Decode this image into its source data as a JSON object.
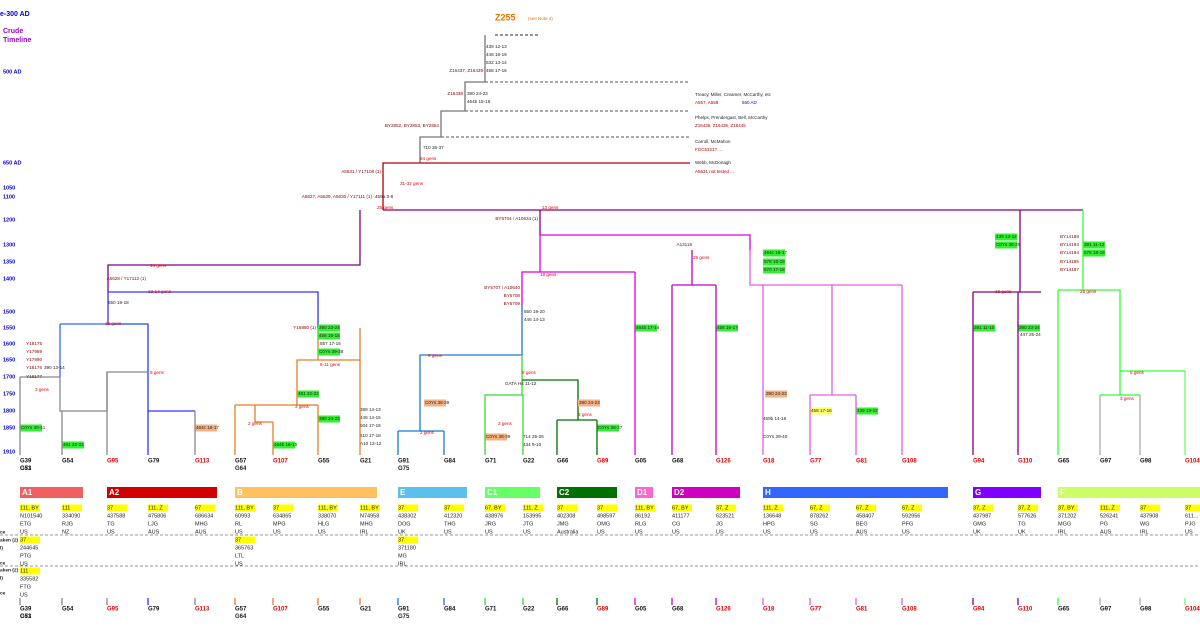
{
  "header": {
    "era": "e-300 AD",
    "crude": "Crude",
    "timeline": "Timeline",
    "root": "Z255",
    "root_note": "(see Note 4)"
  },
  "timeline": [
    "500 AD",
    "650 AD",
    "1050",
    "1100",
    "1200",
    "1300",
    "1350",
    "1400",
    "1500",
    "1550",
    "1600",
    "1650",
    "1700",
    "1750",
    "1800",
    "1850",
    "1910"
  ],
  "descendants": [
    {
      "text": "Treacy, Miller, Creamer, McCarthy, etc",
      "color": "#222"
    },
    {
      "text": "A557, A558",
      "color": "#b00000"
    },
    {
      "text": "550 AD",
      "color": "#0000d0"
    },
    {
      "text": "Phelps, Prendergast, Bell, McCarthy",
      "color": "#222"
    },
    {
      "text": "Z16435, Z16436, Z16445",
      "color": "#b00000"
    },
    {
      "text": "Carroll, McMahon",
      "color": "#222"
    },
    {
      "text": "FGC5321? ...",
      "color": "#b00000"
    },
    {
      "text": "Webb, McDonagh",
      "color": "#222"
    },
    {
      "text": "A5631 not tested ...",
      "color": "#b00000"
    }
  ],
  "notes": [
    {
      "text": "439 12-13"
    },
    {
      "text": "448 18-19"
    },
    {
      "text": "532 13-14"
    },
    {
      "text": "458 17-16"
    },
    {
      "text": "Z16437, Z16439",
      "color": "#8b0000"
    },
    {
      "text": "Z16438",
      "color": "#8b0000"
    },
    {
      "text": "390 24-23"
    },
    {
      "text": "464b 15-16"
    },
    {
      "text": "BY2852, BY2853, BY2854",
      "color": "#8b0000"
    },
    {
      "text": "710 36-37"
    },
    {
      "text": "A5631 / Y17108 (1)",
      "color": "#8b0000"
    },
    {
      "text": "A5627, A5629, A5630 / Y17111 (1)",
      "color": "#8b0000"
    },
    {
      "text": "459a 3-8"
    },
    {
      "text": "BY5704 / A10634 (1)",
      "color": "#8b0000"
    },
    {
      "text": "A5628 / Y17112 (1)",
      "color": "#8b0000"
    },
    {
      "text": "650 19-18"
    },
    {
      "text": "Y16880 (1)",
      "color": "#8b0000"
    },
    {
      "text": "557 17-16"
    },
    {
      "text": "BY5707 / A10640",
      "color": "#8b0000"
    },
    {
      "text": "BY5708",
      "color": "#8b0000"
    },
    {
      "text": "BY5709",
      "color": "#8b0000"
    },
    {
      "text": "650 19-20"
    },
    {
      "text": "446 14-13"
    },
    {
      "text": "A13119",
      "color": "#8b0000"
    },
    {
      "text": "389 14-13"
    },
    {
      "text": "446 14-15"
    },
    {
      "text": "504 17-16"
    },
    {
      "text": "510 17-18"
    },
    {
      "text": "A10 13-12"
    },
    {
      "text": "Y18175",
      "color": "#8b0000"
    },
    {
      "text": "Y17989",
      "color": "#8b0000"
    },
    {
      "text": "Y17990",
      "color": "#8b0000"
    },
    {
      "text": "Y18176",
      "color": "#8b0000"
    },
    {
      "text": "Y18177",
      "color": "#8b0000"
    },
    {
      "text": "390 13-14"
    },
    {
      "text": "447 25-24"
    },
    {
      "text": "BY14189",
      "color": "#8b0000"
    },
    {
      "text": "BY14193",
      "color": "#8b0000"
    },
    {
      "text": "BY14194",
      "color": "#8b0000"
    },
    {
      "text": "BY14195",
      "color": "#8b0000"
    },
    {
      "text": "BY14197",
      "color": "#8b0000"
    },
    {
      "text": "459b 14-16"
    },
    {
      "text": "C0Ys 39-40"
    },
    {
      "text": "GATA H4 11-12"
    },
    {
      "text": "714 25-26"
    },
    {
      "text": "434 9-10"
    }
  ],
  "highlights": [
    {
      "text": "390 23-24",
      "bg": "#33ee33"
    },
    {
      "text": "456 16-15",
      "bg": "#33ee33"
    },
    {
      "text": "C0Ys 39-38",
      "bg": "#33ee33"
    },
    {
      "text": "481 22-23",
      "bg": "#33ee33"
    },
    {
      "text": "390 24-23",
      "bg": "#33ee33"
    },
    {
      "text": "464c 16-17",
      "bg": "#33ee33"
    },
    {
      "text": "576 18-19",
      "bg": "#33ee33"
    },
    {
      "text": "570 17-18",
      "bg": "#33ee33"
    },
    {
      "text": "439 13-12",
      "bg": "#33ee33"
    },
    {
      "text": "C0Ys 36-38",
      "bg": "#33ee33"
    },
    {
      "text": "391 11-10",
      "bg": "#33ee33"
    },
    {
      "text": "390 23-24",
      "bg": "#33ee33"
    },
    {
      "text": "391 11-12",
      "bg": "#33ee33"
    },
    {
      "text": "576 18-19",
      "bg": "#33ee33"
    },
    {
      "text": "390 24-23",
      "bg": "#f4b183"
    },
    {
      "text": "C0Ys 38-39",
      "bg": "#f4b183"
    },
    {
      "text": "390 24-23",
      "bg": "#f4b183"
    },
    {
      "text": "C0Ys 40-41",
      "bg": "#33ee33"
    },
    {
      "text": "481 22-23",
      "bg": "#33ee33"
    },
    {
      "text": "464c 16-17",
      "bg": "#f4b183"
    },
    {
      "text": "464b 16-15",
      "bg": "#33ee33"
    },
    {
      "text": "C0Ys 38-39",
      "bg": "#f4b183"
    },
    {
      "text": "C0Ys 38-37",
      "bg": "#33ee33"
    },
    {
      "text": "464b 17-16",
      "bg": "#33ee33"
    },
    {
      "text": "456 16-17",
      "bg": "#33ee33"
    },
    {
      "text": "439 13-12",
      "bg": "#33ee33"
    },
    {
      "text": "458 17-16",
      "bg": "#ffff66"
    }
  ],
  "gens": [
    "14 gens",
    "25 gens",
    "31-32 gens",
    "84 gens",
    "12-14 gens",
    "12 gens",
    "8 gens",
    "3 gens",
    "13 gens",
    "18 gens",
    "25 gens",
    "18 gens",
    "28 gens",
    "8-11 gens",
    "3 gens",
    "9 gens",
    "8 gens",
    "2 gens",
    "3 gens",
    "2 gens",
    "2 gens",
    "5 gens",
    "3 gens"
  ],
  "leaves": [
    {
      "label": "G39",
      "color": "#111",
      "also": [
        "G51",
        "G73"
      ]
    },
    {
      "label": "G54",
      "color": "#111"
    },
    {
      "label": "G95",
      "color": "#e00000"
    },
    {
      "label": "G79",
      "color": "#111"
    },
    {
      "label": "G113",
      "color": "#e00000"
    },
    {
      "label": "G57",
      "color": "#111",
      "also": [
        "G64"
      ]
    },
    {
      "label": "G107",
      "color": "#e00000"
    },
    {
      "label": "G55",
      "color": "#111"
    },
    {
      "label": "G21",
      "color": "#111"
    },
    {
      "label": "G91",
      "color": "#111",
      "also": [
        "G75"
      ]
    },
    {
      "label": "G84",
      "color": "#111"
    },
    {
      "label": "G71",
      "color": "#111"
    },
    {
      "label": "G22",
      "color": "#111"
    },
    {
      "label": "G66",
      "color": "#111"
    },
    {
      "label": "G89",
      "color": "#e00000"
    },
    {
      "label": "G05",
      "color": "#111"
    },
    {
      "label": "G68",
      "color": "#111"
    },
    {
      "label": "G126",
      "color": "#e00000"
    },
    {
      "label": "G18",
      "color": "#e00000"
    },
    {
      "label": "G77",
      "color": "#e00000"
    },
    {
      "label": "G81",
      "color": "#e00000"
    },
    {
      "label": "G108",
      "color": "#e00000"
    },
    {
      "label": "G94",
      "color": "#e00000"
    },
    {
      "label": "G110",
      "color": "#e00000"
    },
    {
      "label": "G65",
      "color": "#111"
    },
    {
      "label": "G97",
      "color": "#111"
    },
    {
      "label": "G98",
      "color": "#111"
    },
    {
      "label": "G104",
      "color": "#e00000"
    }
  ],
  "groups": [
    {
      "label": "A1",
      "color": "#f06060"
    },
    {
      "label": "A2",
      "color": "#d00000"
    },
    {
      "label": "B",
      "color": "#ffc060"
    },
    {
      "label": "E",
      "color": "#5bc0eb"
    },
    {
      "label": "C1",
      "color": "#66ff66"
    },
    {
      "label": "C2",
      "color": "#007000"
    },
    {
      "label": "D1",
      "color": "#ff66cc"
    },
    {
      "label": "D2",
      "color": "#d000c0"
    },
    {
      "label": "H",
      "color": "#3366ff"
    },
    {
      "label": "G",
      "color": "#8000ff"
    },
    {
      "label": "F",
      "color": "#ccff66"
    }
  ],
  "table": {
    "row_labels": [
      "ce",
      "aken (2)",
      "l)",
      "ce",
      "aken (2)",
      "l)",
      "ce"
    ],
    "columns": [
      {
        "markers": "111, BY",
        "kit": "N101540",
        "code": "ETG",
        "country": "US"
      },
      {
        "markers": "111",
        "kit": "334090",
        "code": "RJG",
        "country": "NZ"
      },
      {
        "markers": "37",
        "kit": "437588",
        "code": "TG",
        "country": "US"
      },
      {
        "markers": "111, Z",
        "kit": "475806",
        "code": "LJG",
        "country": "AUS"
      },
      {
        "markers": "67",
        "kit": "686634",
        "code": "MHG",
        "country": "AUS"
      },
      {
        "markers": "111, BY",
        "kit": "60993",
        "code": "RL",
        "country": "US"
      },
      {
        "markers": "37",
        "kit": "634865",
        "code": "MPG",
        "country": "US"
      },
      {
        "markers": "111, BY",
        "kit": "338070",
        "code": "HLG",
        "country": "US"
      },
      {
        "markers": "111, BY",
        "kit": "N74958",
        "code": "MHG",
        "country": "IRL"
      },
      {
        "markers": "37",
        "kit": "438302",
        "code": "DOG",
        "country": "UK"
      },
      {
        "markers": "37",
        "kit": "412320",
        "code": "THG",
        "country": "US"
      },
      {
        "markers": "67, BY",
        "kit": "438976",
        "code": "JRG",
        "country": "US"
      },
      {
        "markers": "111, Z",
        "kit": "153995",
        "code": "JTG",
        "country": "US"
      },
      {
        "markers": "37",
        "kit": "402308",
        "code": "JMG",
        "country": "Australia"
      },
      {
        "markers": "37",
        "kit": "498597",
        "code": "OMG",
        "country": "US"
      },
      {
        "markers": "111, BY",
        "kit": "86192",
        "code": "RLG",
        "country": "US"
      },
      {
        "markers": "67, BY",
        "kit": "411177",
        "code": "CG",
        "country": "US"
      },
      {
        "markers": "37, Z",
        "kit": "623521",
        "code": "JG",
        "country": "US"
      },
      {
        "markers": "111, Z",
        "kit": "136648",
        "code": "HPG",
        "country": "US"
      },
      {
        "markers": "67, Z",
        "kit": "878262",
        "code": "SG",
        "country": "US"
      },
      {
        "markers": "67, Z",
        "kit": "458407",
        "code": "BEG",
        "country": "AUS"
      },
      {
        "markers": "67, Z",
        "kit": "592956",
        "code": "PFG",
        "country": "US"
      },
      {
        "markers": "37, Z",
        "kit": "437987",
        "code": "GMG",
        "country": "UK"
      },
      {
        "markers": "37, Z",
        "kit": "577626",
        "code": "TG",
        "country": "UK"
      },
      {
        "markers": "37, BY",
        "kit": "371202",
        "code": "MGG",
        "country": "IRL"
      },
      {
        "markers": "111, Z",
        "kit": "526241",
        "code": "PG",
        "country": "AUS"
      },
      {
        "markers": "37",
        "kit": "437908",
        "code": "WG",
        "country": "IRL"
      },
      {
        "markers": "37",
        "kit": "611...",
        "code": "PJG",
        "country": "US"
      }
    ],
    "extra": [
      {
        "markers": "37",
        "kit": "244645",
        "code": "PTG",
        "country": "US"
      },
      {
        "markers": "37",
        "kit": "365763",
        "code": "LTL",
        "country": "US"
      },
      {
        "markers": "37",
        "kit": "371180",
        "code": "MG",
        "country": "IRL"
      },
      {
        "markers": "111",
        "kit": "335582",
        "code": "FTG",
        "country": "US"
      }
    ]
  }
}
